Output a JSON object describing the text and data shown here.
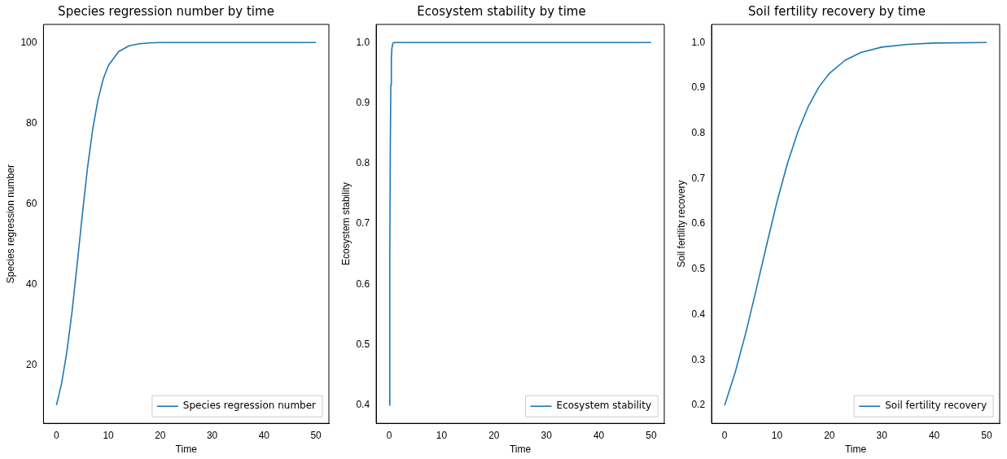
{
  "chart_data": [
    {
      "type": "line",
      "title": "Species regression number by time",
      "xlabel": "Time",
      "ylabel": "Species regression number",
      "x": [
        0,
        1,
        2,
        3,
        4,
        5,
        6,
        7,
        8,
        9,
        10,
        12,
        14,
        16,
        18,
        20,
        25,
        30,
        40,
        50
      ],
      "series": [
        {
          "name": "Species regression number",
          "color": "#1f77b4",
          "values": [
            10,
            15.5,
            23.2,
            33.2,
            45.1,
            57.5,
            69.1,
            78.6,
            85.8,
            90.9,
            94.3,
            97.8,
            99.2,
            99.7,
            99.9,
            100,
            100,
            100,
            100,
            100
          ]
        }
      ],
      "xlim": [
        -2.5,
        52.5
      ],
      "xticks": [
        0,
        10,
        20,
        30,
        40,
        50
      ],
      "ylim": [
        5.5,
        104.5
      ],
      "yticks": [
        20,
        40,
        60,
        80,
        100
      ],
      "legend": "bottom right",
      "grid": false,
      "marker": "none",
      "line_style": "solid"
    },
    {
      "type": "line",
      "title": "Ecosystem stability by time",
      "xlabel": "Time",
      "ylabel": "Ecosystem stability",
      "x": [
        0,
        0.1,
        0.2,
        0.3,
        0.4,
        0.5,
        0.7,
        1,
        1.5,
        2,
        50
      ],
      "series": [
        {
          "name": "Ecosystem stability",
          "color": "#1f77b4",
          "values": [
            0.4,
            0.644,
            0.831,
            0.93,
            0.973,
            0.99,
            0.999,
            1,
            1,
            1,
            1
          ]
        }
      ],
      "xlim": [
        -2.5,
        52.5
      ],
      "xticks": [
        0,
        10,
        20,
        30,
        40,
        50
      ],
      "ylim": [
        0.37,
        1.03
      ],
      "yticks": [
        0.4,
        0.5,
        0.6,
        0.7,
        0.8,
        0.9,
        {
          "value": 1,
          "label": "1.0"
        }
      ],
      "legend": "bottom right",
      "grid": false,
      "marker": "none",
      "line_style": "solid"
    },
    {
      "type": "line",
      "title": "Soil fertility recovery by time",
      "xlabel": "Time",
      "ylabel": "Soil fertility recovery",
      "x": [
        0,
        2,
        4,
        6,
        8,
        10,
        12,
        14,
        16,
        18,
        20,
        23,
        26,
        30,
        35,
        40,
        50
      ],
      "series": [
        {
          "name": "Soil fertility recovery",
          "color": "#1f77b4",
          "values": [
            0.2,
            0.272,
            0.358,
            0.454,
            0.553,
            0.649,
            0.734,
            0.804,
            0.86,
            0.902,
            0.932,
            0.961,
            0.978,
            0.99,
            0.996,
            0.999,
            1
          ]
        }
      ],
      "xlim": [
        -2.5,
        52.5
      ],
      "xticks": [
        0,
        10,
        20,
        30,
        40,
        50
      ],
      "ylim": [
        0.16,
        1.04
      ],
      "yticks": [
        0.2,
        0.3,
        0.4,
        0.5,
        0.6,
        0.7,
        0.8,
        0.9,
        {
          "value": 1,
          "label": "1.0"
        }
      ],
      "legend": "bottom right",
      "grid": false,
      "marker": "none",
      "line_style": "solid"
    }
  ]
}
